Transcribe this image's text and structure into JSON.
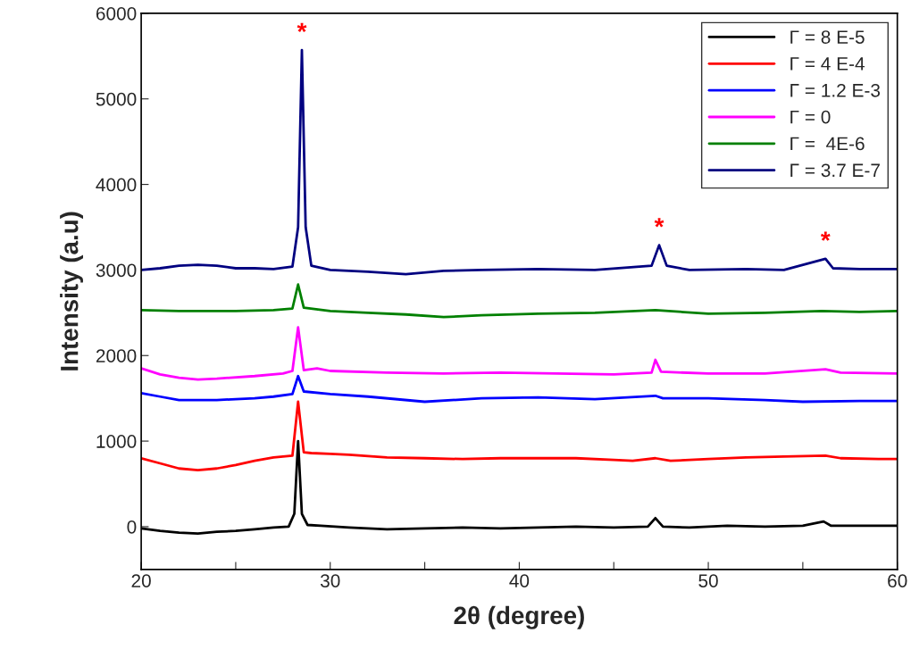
{
  "chart_data": {
    "type": "line",
    "xlabel": "2θ (degree)",
    "ylabel": "Intensity (a.u)",
    "xlim": [
      20,
      60
    ],
    "ylim": [
      -500,
      6000
    ],
    "xticks": [
      20,
      {
        "value": 25,
        "label": null
      },
      30,
      {
        "value": 35,
        "label": null
      },
      40,
      {
        "value": 45,
        "label": null
      },
      50,
      {
        "value": 55,
        "label": null
      },
      60
    ],
    "yticks": [
      0,
      1000,
      2000,
      3000,
      4000,
      5000,
      6000
    ],
    "grid": false,
    "legend": "top right",
    "marker": "none",
    "line_style": "solid",
    "series": [
      {
        "name": "Γ = 8 E-5",
        "color": "#000000",
        "x": [
          20,
          21,
          22,
          23,
          24,
          25,
          26,
          27,
          27.8,
          28.1,
          28.3,
          28.5,
          28.8,
          29.5,
          31,
          33,
          35,
          37,
          39,
          41,
          43,
          45,
          46.8,
          47.2,
          47.6,
          49,
          51,
          53,
          55,
          56.1,
          56.5,
          58,
          60
        ],
        "values": [
          -20,
          -50,
          -70,
          -80,
          -60,
          -50,
          -30,
          -10,
          0,
          150,
          1000,
          150,
          20,
          10,
          -10,
          -30,
          -20,
          -10,
          -20,
          -10,
          0,
          -10,
          0,
          100,
          0,
          -10,
          10,
          0,
          10,
          60,
          10,
          10,
          10
        ]
      },
      {
        "name": "Γ = 4 E-4",
        "color": "#ff0000",
        "x": [
          20,
          21,
          22,
          23,
          24,
          25,
          26,
          27,
          28,
          28.3,
          28.6,
          29,
          30,
          31,
          33,
          35,
          37,
          39,
          41,
          43,
          45,
          46,
          47.2,
          48,
          50,
          52,
          54,
          56.2,
          57,
          59,
          60
        ],
        "values": [
          800,
          740,
          680,
          660,
          680,
          720,
          770,
          810,
          830,
          1460,
          870,
          860,
          850,
          840,
          810,
          800,
          790,
          800,
          800,
          800,
          780,
          770,
          800,
          770,
          790,
          810,
          820,
          830,
          800,
          790,
          790
        ]
      },
      {
        "name": "Γ = 1.2 E-3",
        "color": "#0000ff",
        "x": [
          20,
          21,
          22,
          23,
          24,
          25,
          26,
          27,
          28,
          28.3,
          28.6,
          30,
          32,
          35,
          38,
          41,
          44,
          47.2,
          47.6,
          50,
          53,
          55,
          58,
          60
        ],
        "values": [
          1560,
          1520,
          1480,
          1480,
          1480,
          1490,
          1500,
          1520,
          1550,
          1760,
          1580,
          1550,
          1520,
          1460,
          1500,
          1510,
          1490,
          1530,
          1500,
          1500,
          1480,
          1460,
          1470,
          1470
        ]
      },
      {
        "name": "Γ = 0",
        "color": "#ff00ff",
        "x": [
          20,
          21,
          22,
          23,
          24,
          26,
          27.5,
          28,
          28.3,
          28.6,
          29.3,
          30,
          33,
          36,
          39,
          42,
          45,
          47,
          47.2,
          47.5,
          50,
          53,
          56.2,
          57,
          60
        ],
        "values": [
          1850,
          1780,
          1740,
          1720,
          1730,
          1760,
          1790,
          1820,
          2330,
          1830,
          1850,
          1820,
          1800,
          1790,
          1800,
          1790,
          1780,
          1800,
          1950,
          1810,
          1790,
          1790,
          1840,
          1800,
          1790
        ]
      },
      {
        "name": "Γ =  4E-6",
        "color": "#008000",
        "x": [
          20,
          22,
          25,
          27,
          28,
          28.3,
          28.6,
          30,
          32,
          34,
          36,
          38,
          41,
          44,
          47.2,
          50,
          53,
          56,
          58,
          60
        ],
        "values": [
          2530,
          2520,
          2520,
          2530,
          2550,
          2830,
          2560,
          2520,
          2500,
          2480,
          2450,
          2470,
          2490,
          2500,
          2530,
          2490,
          2500,
          2520,
          2510,
          2520
        ]
      },
      {
        "name": "Γ = 3.7 E-7",
        "color": "#000080",
        "x": [
          20,
          21,
          22,
          23,
          24,
          25,
          26,
          27,
          28,
          28.3,
          28.5,
          28.7,
          29,
          30,
          32,
          34,
          36,
          38,
          41,
          44,
          47,
          47.4,
          47.8,
          49,
          52,
          54,
          56.2,
          56.6,
          58,
          60
        ],
        "values": [
          3000,
          3020,
          3050,
          3060,
          3050,
          3020,
          3020,
          3010,
          3040,
          3500,
          5570,
          3500,
          3050,
          3000,
          2980,
          2950,
          2990,
          3000,
          3010,
          3000,
          3050,
          3290,
          3050,
          3000,
          3010,
          3000,
          3130,
          3020,
          3010,
          3010
        ]
      }
    ],
    "annotations": [
      {
        "text": "*",
        "x": 28.5,
        "y": 5570
      },
      {
        "text": "*",
        "x": 47.4,
        "y": 3290
      },
      {
        "text": "*",
        "x": 56.2,
        "y": 3130
      }
    ]
  }
}
